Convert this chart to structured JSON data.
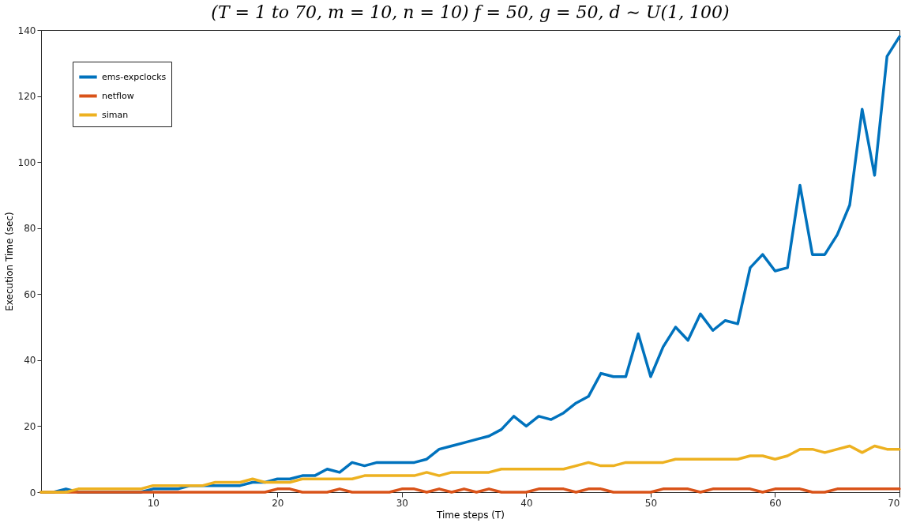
{
  "chart_data": {
    "type": "line",
    "title": "(T = 1 to 70, m = 10, n = 10)   f = 50,  g = 50,  d ∼ U(1, 100)",
    "xlabel": "Time steps (T)",
    "ylabel": "Execution Time (sec)",
    "x": [
      1,
      2,
      3,
      4,
      5,
      6,
      7,
      8,
      9,
      10,
      11,
      12,
      13,
      14,
      15,
      16,
      17,
      18,
      19,
      20,
      21,
      22,
      23,
      24,
      25,
      26,
      27,
      28,
      29,
      30,
      31,
      32,
      33,
      34,
      35,
      36,
      37,
      38,
      39,
      40,
      41,
      42,
      43,
      44,
      45,
      46,
      47,
      48,
      49,
      50,
      51,
      52,
      53,
      54,
      55,
      56,
      57,
      58,
      59,
      60,
      61,
      62,
      63,
      64,
      65,
      66,
      67,
      68,
      69,
      70
    ],
    "series": [
      {
        "name": "ems-expclocks",
        "color": "#0072bd",
        "values": [
          0,
          0,
          1,
          0,
          0,
          0,
          0,
          0,
          0,
          1,
          1,
          1,
          2,
          2,
          2,
          2,
          2,
          3,
          3,
          4,
          4,
          5,
          5,
          7,
          6,
          9,
          8,
          9,
          9,
          9,
          9,
          10,
          13,
          14,
          15,
          16,
          17,
          19,
          23,
          20,
          23,
          22,
          24,
          27,
          29,
          36,
          35,
          35,
          48,
          35,
          44,
          50,
          46,
          54,
          49,
          52,
          51,
          68,
          72,
          67,
          68,
          93,
          72,
          72,
          78,
          87,
          116,
          96,
          132,
          138
        ]
      },
      {
        "name": "netflow",
        "color": "#d95319",
        "values": [
          0,
          0,
          0,
          0,
          0,
          0,
          0,
          0,
          0,
          0,
          0,
          0,
          0,
          0,
          0,
          0,
          0,
          0,
          0,
          1,
          1,
          0,
          0,
          0,
          1,
          0,
          0,
          0,
          0,
          1,
          1,
          0,
          1,
          0,
          1,
          0,
          1,
          0,
          0,
          0,
          1,
          1,
          1,
          0,
          1,
          1,
          0,
          0,
          0,
          0,
          1,
          1,
          1,
          0,
          1,
          1,
          1,
          1,
          0,
          1,
          1,
          1,
          0,
          0,
          1,
          1,
          1,
          1,
          1,
          1
        ]
      },
      {
        "name": "siman",
        "color": "#edb120",
        "values": [
          0,
          0,
          0,
          1,
          1,
          1,
          1,
          1,
          1,
          2,
          2,
          2,
          2,
          2,
          3,
          3,
          3,
          4,
          3,
          3,
          3,
          4,
          4,
          4,
          4,
          4,
          5,
          5,
          5,
          5,
          5,
          6,
          5,
          6,
          6,
          6,
          6,
          7,
          7,
          7,
          7,
          7,
          7,
          8,
          9,
          8,
          8,
          9,
          9,
          9,
          9,
          10,
          10,
          10,
          10,
          10,
          10,
          11,
          11,
          10,
          11,
          13,
          13,
          12,
          13,
          14,
          12,
          14,
          13,
          13
        ]
      }
    ],
    "xlim": [
      1,
      70
    ],
    "xticks": [
      10,
      20,
      30,
      40,
      50,
      60,
      70
    ],
    "ylim": [
      0,
      140
    ],
    "yticks": [
      0,
      20,
      40,
      60,
      80,
      100,
      120,
      140
    ],
    "grid": false,
    "legend": "top left",
    "line_style": "solid"
  }
}
